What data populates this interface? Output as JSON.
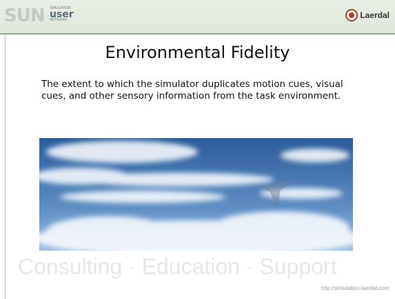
{
  "header": {
    "logo": {
      "mark": "SUN",
      "line1": "SIMULATION",
      "line2": "user",
      "line3": "NETWORK"
    },
    "brand": "Laerdal"
  },
  "slide": {
    "title": "Environmental Fidelity",
    "body": "The extent to which the simulator duplicates motion cues, visual cues, and other sensory information from the task environment.",
    "watermark": "Consulting · Education · Support",
    "url": "http://simulation.laerdal.com"
  }
}
